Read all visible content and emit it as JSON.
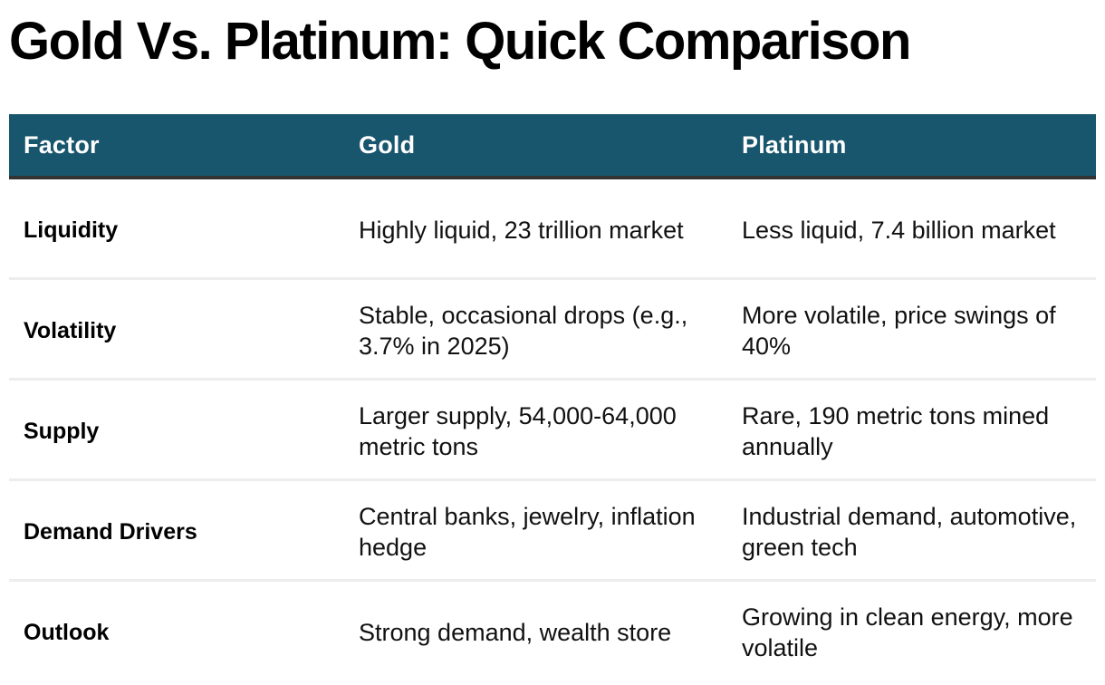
{
  "title": "Gold Vs. Platinum: Quick Comparison",
  "colors": {
    "header_bg": "#18566e",
    "header_border": "#333333",
    "row_divider": "#ededed",
    "header_text": "#ffffff",
    "body_text": "#000000"
  },
  "table": {
    "headers": [
      "Factor",
      "Gold",
      "Platinum"
    ],
    "rows": [
      {
        "factor": "Liquidity",
        "gold": "Highly liquid, 23 trillion market",
        "platinum": "Less liquid, 7.4 billion market"
      },
      {
        "factor": "Volatility",
        "gold": "Stable, occasional drops (e.g., 3.7% in 2025)",
        "platinum": "More volatile, price swings of 40%"
      },
      {
        "factor": "Supply",
        "gold": "Larger supply, 54,000-64,000 metric tons",
        "platinum": "Rare, 190 metric tons mined annually"
      },
      {
        "factor": "Demand Drivers",
        "gold": "Central banks, jewelry, inflation hedge",
        "platinum": "Industrial demand, automotive, green tech"
      },
      {
        "factor": "Outlook",
        "gold": "Strong demand, wealth store",
        "platinum": "Growing in clean energy, more volatile"
      }
    ]
  }
}
